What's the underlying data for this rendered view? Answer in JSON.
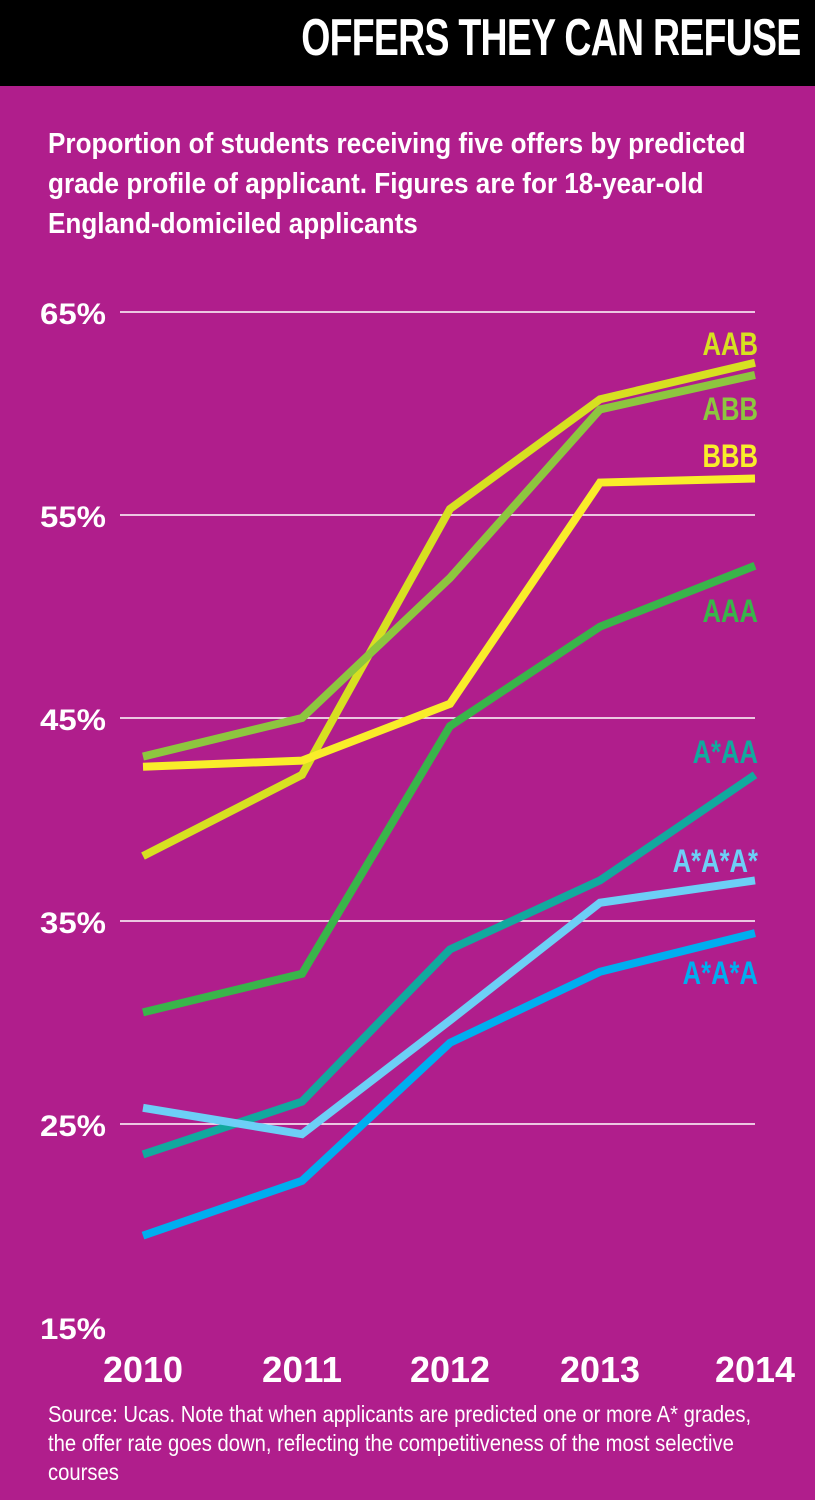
{
  "header": {
    "title": "OFFERS THEY CAN REFUSE"
  },
  "subtitle": "Proportion of students receiving five offers by predicted grade profile of applicant. Figures are for 18-year-old England-domiciled applicants",
  "source": "Source: Ucas. Note that when applicants are predicted one or more A* grades, the offer rate goes down, reflecting the competitiveness of the most selective courses",
  "colors": {
    "background": "#b01e8c",
    "banner": "#000000"
  },
  "chart_data": {
    "type": "line",
    "title": "Proportion of students receiving five offers by predicted grade profile of applicant",
    "xlabel": "",
    "ylabel": "",
    "x": [
      "2010",
      "2011",
      "2012",
      "2013",
      "2014"
    ],
    "ylim": [
      15,
      65
    ],
    "yticks": [
      65,
      55,
      45,
      35,
      25,
      15
    ],
    "ytick_labels": [
      "65%",
      "55%",
      "45%",
      "35%",
      "25%",
      "15%"
    ],
    "grid": true,
    "legend": "inline-right",
    "series": [
      {
        "name": "AAB",
        "color": "#d7e021",
        "values": [
          38.2,
          42.2,
          55.3,
          60.7,
          62.5
        ]
      },
      {
        "name": "ABB",
        "color": "#8dc63f",
        "values": [
          43.1,
          45.0,
          51.9,
          60.2,
          61.9
        ]
      },
      {
        "name": "BBB",
        "color": "#f9ed2a",
        "values": [
          42.6,
          42.9,
          45.7,
          56.6,
          56.8
        ]
      },
      {
        "name": "AAA",
        "color": "#39b54a",
        "values": [
          30.5,
          32.4,
          44.6,
          49.5,
          52.5
        ]
      },
      {
        "name": "A*AA",
        "color": "#12a99e",
        "values": [
          23.5,
          26.1,
          33.6,
          37.0,
          42.2
        ]
      },
      {
        "name": "A*A*A*",
        "color": "#6dcff6",
        "values": [
          25.8,
          24.5,
          30.1,
          35.9,
          37.0
        ]
      },
      {
        "name": "A*A*A",
        "color": "#00aeef",
        "values": [
          19.5,
          22.2,
          29.0,
          32.5,
          34.4
        ]
      }
    ]
  }
}
